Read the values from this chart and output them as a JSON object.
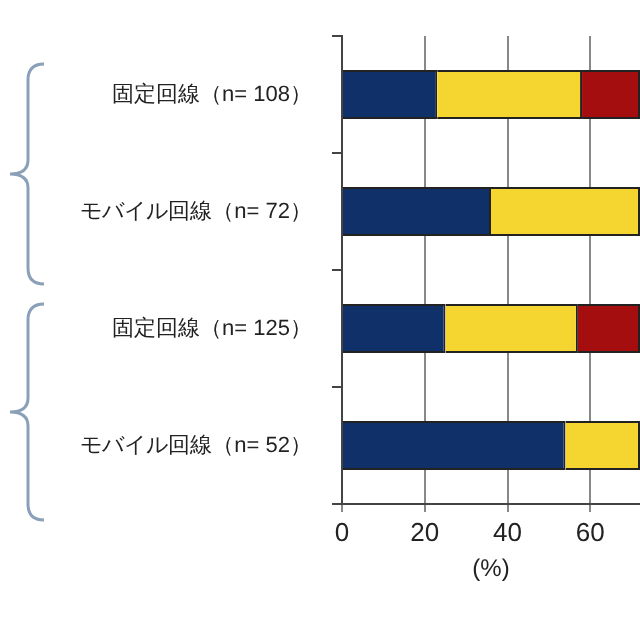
{
  "chart_data": {
    "type": "bar",
    "orientation": "horizontal",
    "stacked": true,
    "xlabel": "(%)",
    "categories": [
      "固定回線（n= 108）",
      "モバイル回線（n= 72）",
      "固定回線（n= 125）",
      "モバイル回線（n= 52）"
    ],
    "series": [
      {
        "color": "#0f3068",
        "values": [
          23,
          36,
          25,
          54
        ]
      },
      {
        "color": "#f5d630",
        "values": [
          35,
          36,
          32,
          18
        ]
      },
      {
        "color": "#a50e0e",
        "values": [
          14,
          null,
          15,
          null
        ]
      }
    ],
    "xlim": [
      0,
      72
    ],
    "xticks": [
      0,
      20,
      40,
      60
    ],
    "grid": "x",
    "legend": false
  }
}
